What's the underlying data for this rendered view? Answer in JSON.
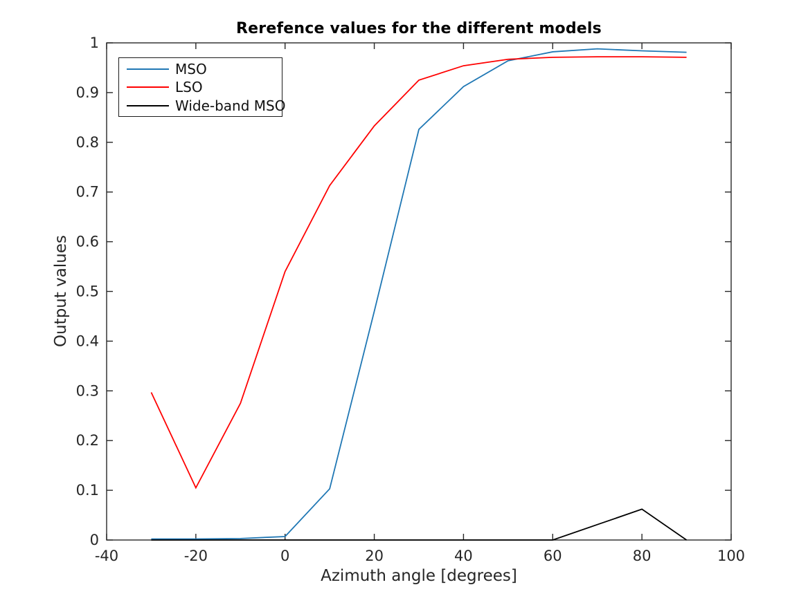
{
  "figure": {
    "background": "#ffffff"
  },
  "chart_data": {
    "type": "line",
    "title": "Rerefence values for the different models",
    "xlabel": "Azimuth angle [degrees]",
    "ylabel": "Output values",
    "xlim": [
      -40,
      100
    ],
    "ylim": [
      0,
      1
    ],
    "xticks": [
      -40,
      -20,
      0,
      20,
      40,
      60,
      80,
      100
    ],
    "xtick_labels": [
      "-40",
      "-20",
      "0",
      "20",
      "40",
      "60",
      "80",
      "100"
    ],
    "yticks": [
      0,
      0.1,
      0.2,
      0.3,
      0.4,
      0.5,
      0.6,
      0.7,
      0.8,
      0.9,
      1
    ],
    "ytick_labels": [
      "0",
      "0.1",
      "0.2",
      "0.3",
      "0.4",
      "0.5",
      "0.6",
      "0.7",
      "0.8",
      "0.9",
      "1"
    ],
    "grid": false,
    "legend_position": "upper-left",
    "axis_color": "#262626",
    "x": [
      -30,
      -20,
      -10,
      0,
      10,
      20,
      30,
      40,
      50,
      60,
      70,
      80,
      90
    ],
    "series": [
      {
        "name": "MSO",
        "color": "#1f77b4",
        "values": [
          0.002,
          0.002,
          0.003,
          0.007,
          0.103,
          0.46,
          0.826,
          0.912,
          0.964,
          0.982,
          0.988,
          0.984,
          0.981
        ]
      },
      {
        "name": "LSO",
        "color": "#ff0000",
        "values": [
          0.297,
          0.105,
          0.275,
          0.54,
          0.713,
          0.833,
          0.925,
          0.954,
          0.967,
          0.971,
          0.972,
          0.972,
          0.971
        ]
      },
      {
        "name": "Wide-band MSO",
        "color": "#000000",
        "values": [
          0,
          0,
          0,
          0,
          0,
          0,
          0,
          0,
          0,
          0,
          0.031,
          0.062,
          0
        ]
      }
    ]
  }
}
